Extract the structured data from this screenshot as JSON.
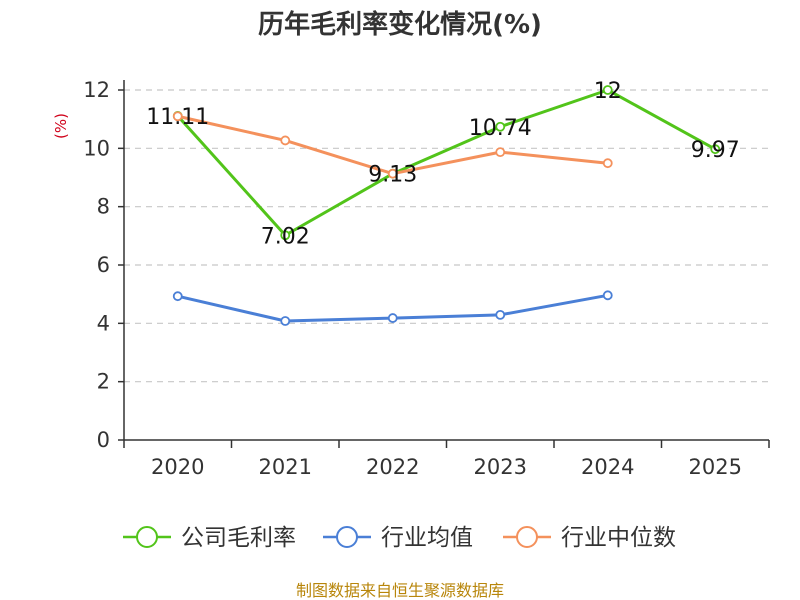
{
  "title": "历年毛利率变化情况(%)",
  "source": "制图数据来自恒生聚源数据库",
  "chart_data": {
    "type": "line",
    "title": "历年毛利率变化情况(%)",
    "ylabel": "(%)",
    "xlabel": "",
    "categories": [
      "2020",
      "2021",
      "2022",
      "2023",
      "2024",
      "2025"
    ],
    "ylim": [
      0,
      12
    ],
    "yticks": [
      0,
      2,
      4,
      6,
      8,
      10,
      12
    ],
    "grid": true,
    "legend_position": "bottom",
    "series": [
      {
        "name": "公司毛利率",
        "color": "#52c41a",
        "values": [
          11.11,
          7.02,
          9.13,
          10.74,
          12,
          9.97
        ],
        "labels": [
          "11.11",
          "7.02",
          "9.13",
          "10.74",
          "12",
          "9.97"
        ]
      },
      {
        "name": "行业均值",
        "color": "#4a7fd6",
        "values": [
          4.93,
          4.08,
          4.18,
          4.29,
          4.96,
          null
        ]
      },
      {
        "name": "行业中位数",
        "color": "#f4915c",
        "values": [
          11.1,
          10.27,
          9.13,
          9.87,
          9.49,
          null
        ]
      }
    ]
  }
}
